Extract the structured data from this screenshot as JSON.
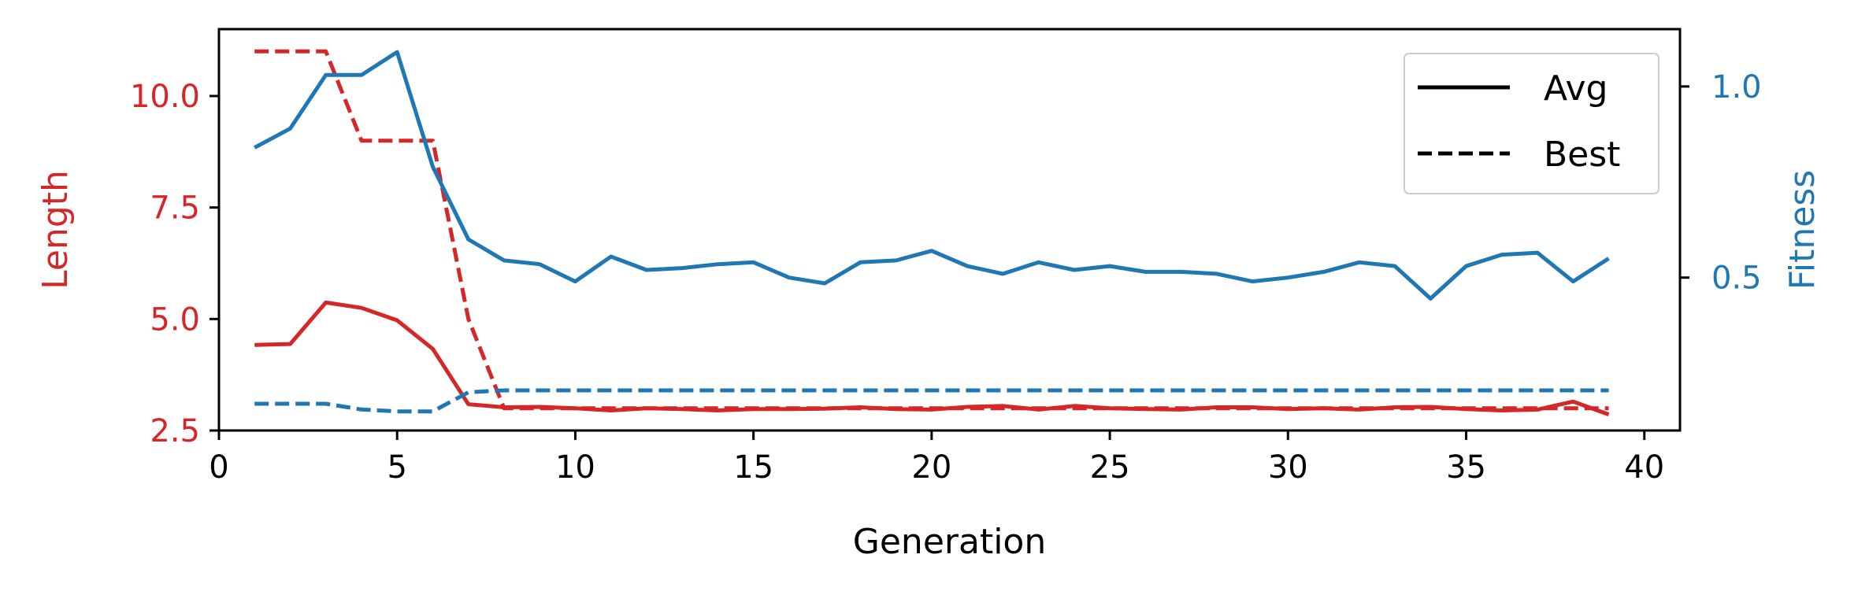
{
  "colors": {
    "length": "#d62728",
    "fitness": "#1f77b4",
    "axis": "#000000"
  },
  "chart_data": {
    "type": "line",
    "xlabel": "Generation",
    "ylabel_left": "Length",
    "ylabel_right": "Fitness",
    "xlim": [
      0,
      41
    ],
    "ylim_left": [
      2.5,
      11.5
    ],
    "ylim_right": [
      0.1,
      1.15
    ],
    "xticks": [
      0,
      5,
      10,
      15,
      20,
      25,
      30,
      35,
      40
    ],
    "yticks_left": [
      "2.5",
      "5.0",
      "7.5",
      "10.0"
    ],
    "yticks_right": [
      "0.5",
      "1.0"
    ],
    "grid": false,
    "legend": {
      "placement": "top-right",
      "entries": [
        {
          "label": "Avg",
          "style": "solid"
        },
        {
          "label": "Best",
          "style": "dashed"
        }
      ]
    },
    "x": [
      1,
      2,
      3,
      4,
      5,
      6,
      7,
      8,
      9,
      10,
      11,
      12,
      13,
      14,
      15,
      16,
      17,
      18,
      19,
      20,
      21,
      22,
      23,
      24,
      25,
      26,
      27,
      28,
      29,
      30,
      31,
      32,
      33,
      34,
      35,
      36,
      37,
      38,
      39
    ],
    "series": [
      {
        "metric": "Length",
        "stat": "Avg",
        "axis": "left",
        "style": "solid",
        "color": "length",
        "values": [
          4.42,
          4.44,
          5.37,
          5.25,
          4.97,
          4.33,
          3.09,
          3.02,
          3.03,
          3.0,
          2.95,
          3.0,
          2.98,
          2.95,
          2.98,
          2.98,
          2.99,
          3.02,
          2.98,
          2.97,
          3.03,
          3.05,
          2.97,
          3.05,
          3.0,
          2.98,
          2.97,
          3.02,
          3.02,
          2.98,
          3.0,
          2.97,
          3.02,
          3.03,
          2.98,
          2.95,
          2.97,
          3.15,
          2.86
        ]
      },
      {
        "metric": "Length",
        "stat": "Best",
        "axis": "left",
        "style": "dashed",
        "color": "length",
        "values": [
          11,
          11,
          11,
          9,
          9,
          9,
          5,
          3,
          3,
          3,
          3,
          3,
          3,
          3,
          3,
          3,
          3,
          3,
          3,
          3,
          3,
          3,
          3,
          3,
          3,
          3,
          3,
          3,
          3,
          3,
          3,
          3,
          3,
          3,
          3,
          3,
          3,
          3,
          3
        ]
      },
      {
        "metric": "Fitness",
        "stat": "Avg",
        "axis": "right",
        "style": "solid",
        "color": "fitness",
        "values": [
          0.84,
          0.89,
          1.03,
          1.03,
          1.09,
          0.79,
          0.6,
          0.545,
          0.535,
          0.49,
          0.555,
          0.52,
          0.525,
          0.535,
          0.54,
          0.5,
          0.485,
          0.54,
          0.545,
          0.57,
          0.53,
          0.51,
          0.54,
          0.52,
          0.53,
          0.515,
          0.515,
          0.51,
          0.49,
          0.5,
          0.515,
          0.54,
          0.53,
          0.445,
          0.53,
          0.56,
          0.565,
          0.49,
          0.55
        ]
      },
      {
        "metric": "Fitness",
        "stat": "Best",
        "axis": "right",
        "style": "dashed",
        "color": "fitness",
        "values": [
          0.17,
          0.17,
          0.17,
          0.155,
          0.15,
          0.15,
          0.2,
          0.205,
          0.205,
          0.205,
          0.205,
          0.205,
          0.205,
          0.205,
          0.205,
          0.205,
          0.205,
          0.205,
          0.205,
          0.205,
          0.205,
          0.205,
          0.205,
          0.205,
          0.205,
          0.205,
          0.205,
          0.205,
          0.205,
          0.205,
          0.205,
          0.205,
          0.205,
          0.205,
          0.205,
          0.205,
          0.205,
          0.205,
          0.205
        ]
      }
    ]
  }
}
